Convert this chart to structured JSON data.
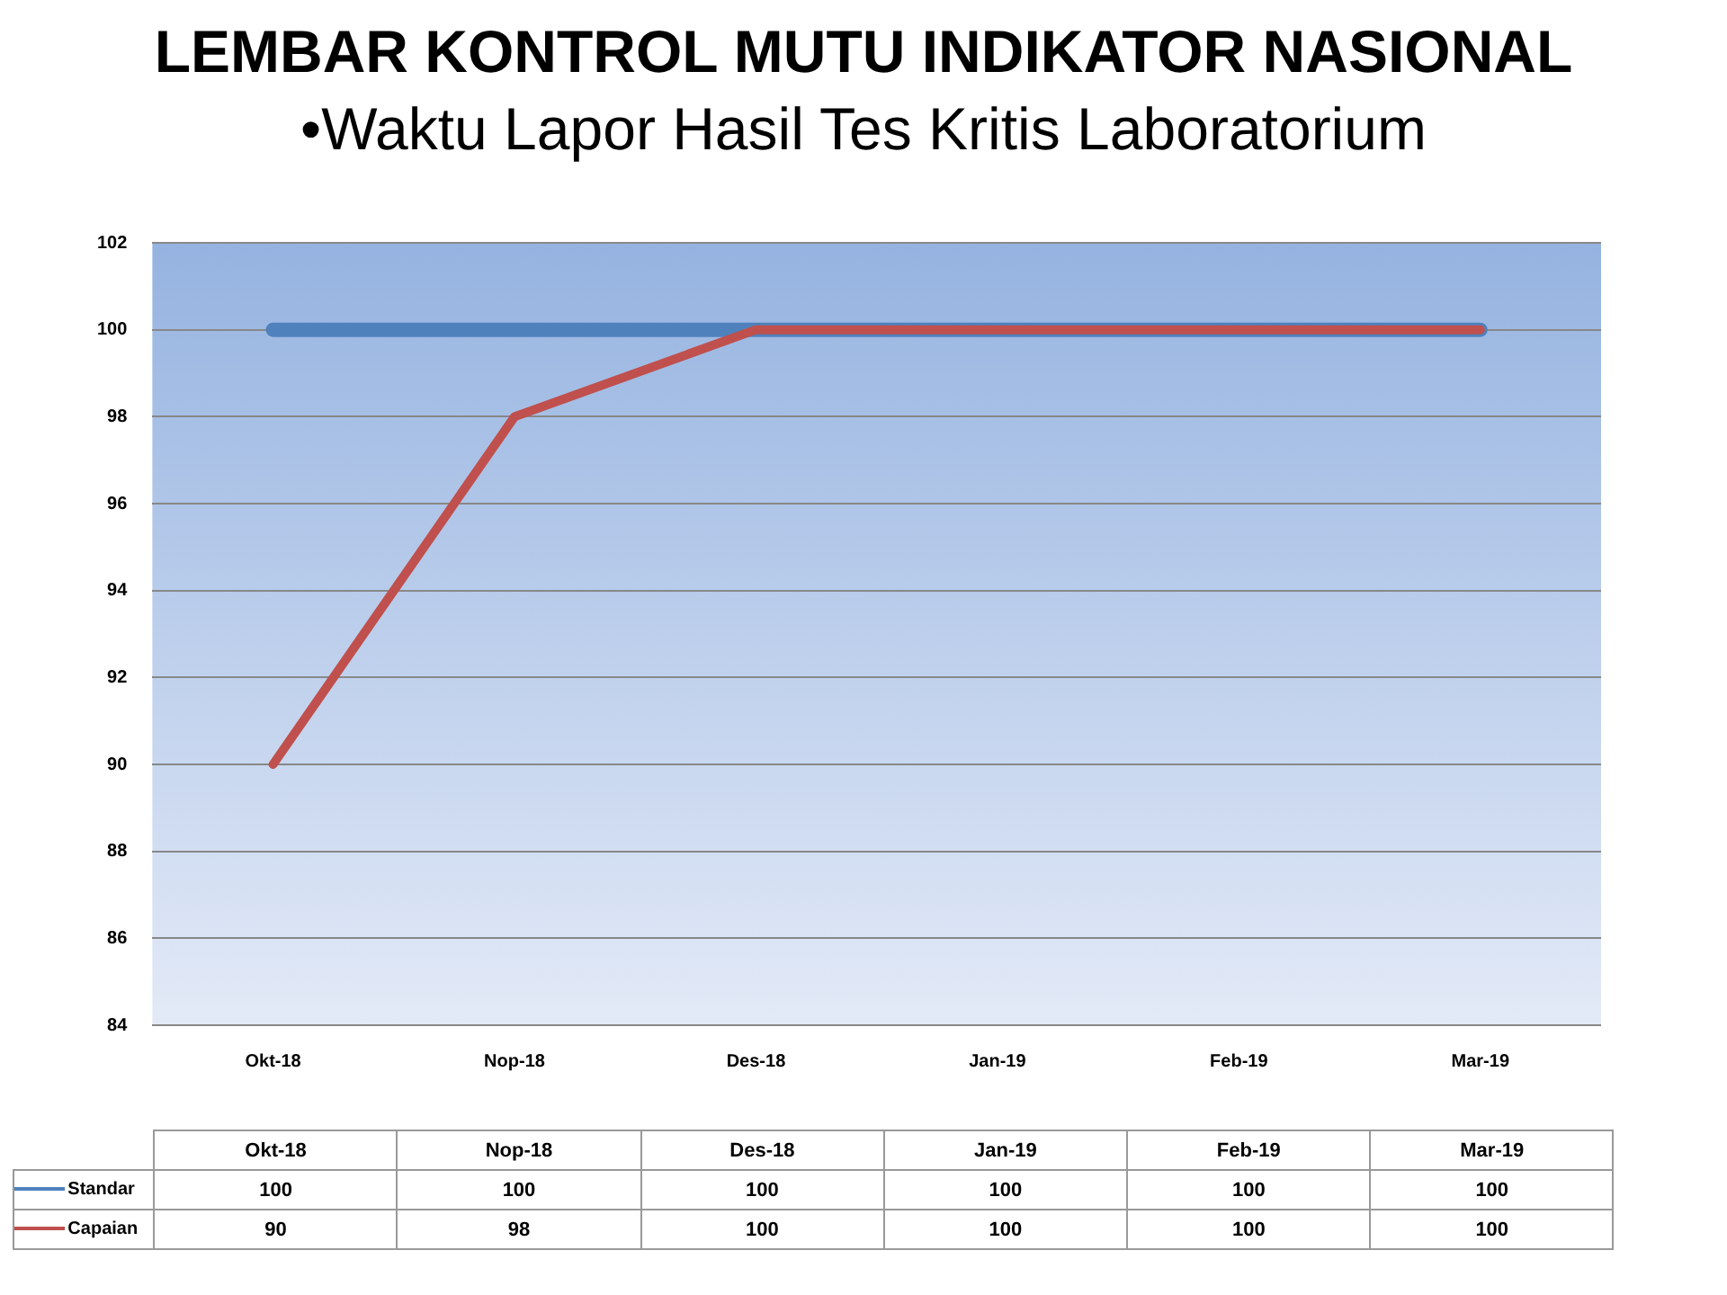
{
  "chart_data": {
    "type": "line",
    "title": "LEMBAR KONTROL MUTU INDIKATOR NASIONAL",
    "subtitle": "•Waktu Lapor Hasil Tes Kritis Laboratorium",
    "categories": [
      "Okt-18",
      "Nop-18",
      "Des-18",
      "Jan-19",
      "Feb-19",
      "Mar-19"
    ],
    "series": [
      {
        "name": "Standar",
        "color": "#4f81bd",
        "values": [
          100,
          100,
          100,
          100,
          100,
          100
        ]
      },
      {
        "name": "Capaian",
        "color": "#c0504d",
        "values": [
          90,
          98,
          100,
          100,
          100,
          100
        ]
      }
    ],
    "ylim": [
      84,
      102
    ],
    "yticks": [
      84,
      86,
      88,
      90,
      92,
      94,
      96,
      98,
      100,
      102
    ],
    "grid": "y",
    "legend": "bottom",
    "data_labels": true,
    "marker": "none",
    "line_style": "solid"
  }
}
